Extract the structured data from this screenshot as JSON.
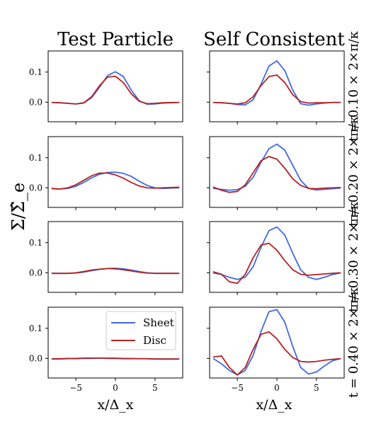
{
  "figure": {
    "col_titles": [
      "Test Particle",
      "Self Consistent"
    ],
    "ylabel": "Σ/Σ̂_e",
    "xlabel": "x/Δ_x",
    "row_labels": [
      "t = 0.10 × 2×π/κ",
      "t = 0.20 × 2×π/κ",
      "t = 0.30 × 2×π/κ",
      "t = 0.40 × 2×π/κ"
    ],
    "legend": [
      "Sheet",
      "Disc"
    ],
    "colors": {
      "sheet": "#4169e1",
      "disc": "#b22222"
    }
  },
  "chart_data": {
    "type": "line",
    "xlim": [
      -8.5,
      8.5
    ],
    "ylim": [
      -0.065,
      0.17
    ],
    "xticks": [
      -5,
      0,
      5
    ],
    "yticks": [
      0.0,
      0.1
    ],
    "xtick_labels": [
      "−5",
      "0",
      "5"
    ],
    "ytick_labels": [
      "0.0",
      "0.1"
    ],
    "x": [
      -8,
      -7,
      -6,
      -5,
      -4,
      -3,
      -2,
      -1,
      0,
      1,
      2,
      3,
      4,
      5,
      6,
      7,
      8
    ],
    "panels": [
      {
        "row": 1,
        "col": "Test Particle",
        "series": [
          {
            "name": "Sheet",
            "values": [
              -0.001,
              -0.002,
              -0.004,
              -0.006,
              -0.003,
              0.015,
              0.05,
              0.088,
              0.101,
              0.085,
              0.04,
              0.005,
              -0.007,
              -0.006,
              -0.003,
              -0.002,
              -0.001
            ]
          },
          {
            "name": "Disc",
            "values": [
              -0.001,
              -0.002,
              -0.004,
              -0.006,
              -0.002,
              0.018,
              0.055,
              0.083,
              0.086,
              0.065,
              0.028,
              0.003,
              -0.005,
              -0.004,
              -0.002,
              -0.001,
              -0.001
            ]
          }
        ]
      },
      {
        "row": 1,
        "col": "Self Consistent",
        "series": [
          {
            "name": "Sheet",
            "values": [
              -0.001,
              -0.002,
              -0.004,
              -0.008,
              -0.009,
              0.008,
              0.06,
              0.12,
              0.137,
              0.105,
              0.04,
              -0.005,
              -0.01,
              -0.006,
              -0.003,
              -0.001,
              -0.001
            ]
          },
          {
            "name": "Disc",
            "values": [
              -0.001,
              -0.002,
              -0.004,
              -0.006,
              -0.002,
              0.018,
              0.055,
              0.085,
              0.09,
              0.065,
              0.025,
              0.002,
              -0.003,
              -0.002,
              -0.002,
              -0.001,
              -0.001
            ]
          }
        ]
      },
      {
        "row": 2,
        "col": "Test Particle",
        "series": [
          {
            "name": "Sheet",
            "values": [
              -0.003,
              -0.004,
              -0.002,
              0.005,
              0.018,
              0.033,
              0.045,
              0.051,
              0.052,
              0.048,
              0.038,
              0.022,
              0.008,
              0.0,
              -0.002,
              -0.001,
              0.0
            ]
          },
          {
            "name": "Disc",
            "values": [
              -0.002,
              -0.004,
              0.0,
              0.01,
              0.025,
              0.04,
              0.049,
              0.049,
              0.043,
              0.032,
              0.018,
              0.006,
              0.0,
              -0.001,
              0.0,
              0.001,
              0.002
            ]
          }
        ]
      },
      {
        "row": 2,
        "col": "Self Consistent",
        "series": [
          {
            "name": "Sheet",
            "values": [
              -0.002,
              -0.005,
              -0.008,
              -0.006,
              0.005,
              0.035,
              0.085,
              0.13,
              0.145,
              0.125,
              0.075,
              0.025,
              -0.002,
              -0.007,
              -0.005,
              -0.003,
              -0.001
            ]
          },
          {
            "name": "Disc",
            "values": [
              0.002,
              -0.008,
              -0.015,
              -0.012,
              0.01,
              0.05,
              0.09,
              0.104,
              0.095,
              0.065,
              0.03,
              0.008,
              -0.002,
              -0.003,
              -0.001,
              0.0,
              0.001
            ]
          }
        ]
      },
      {
        "row": 3,
        "col": "Test Particle",
        "series": [
          {
            "name": "Sheet",
            "values": [
              -0.002,
              -0.002,
              -0.002,
              -0.001,
              0.002,
              0.007,
              0.011,
              0.014,
              0.015,
              0.013,
              0.009,
              0.004,
              0.0,
              -0.002,
              -0.002,
              -0.002,
              -0.002
            ]
          },
          {
            "name": "Disc",
            "values": [
              -0.002,
              -0.002,
              -0.002,
              0.0,
              0.004,
              0.009,
              0.012,
              0.014,
              0.013,
              0.01,
              0.006,
              0.002,
              -0.001,
              -0.002,
              -0.002,
              -0.002,
              -0.002
            ]
          }
        ]
      },
      {
        "row": 3,
        "col": "Self Consistent",
        "series": [
          {
            "name": "Sheet",
            "values": [
              -0.001,
              -0.006,
              -0.015,
              -0.022,
              -0.015,
              0.02,
              0.085,
              0.14,
              0.152,
              0.125,
              0.065,
              0.01,
              -0.015,
              -0.022,
              -0.015,
              -0.006,
              -0.001
            ]
          },
          {
            "name": "Disc",
            "values": [
              0.003,
              -0.005,
              -0.03,
              -0.035,
              -0.005,
              0.05,
              0.092,
              0.098,
              0.075,
              0.04,
              0.01,
              -0.005,
              -0.008,
              -0.006,
              -0.004,
              -0.002,
              0.0
            ]
          }
        ]
      },
      {
        "row": 4,
        "col": "Test Particle",
        "series": [
          {
            "name": "Sheet",
            "values": [
              -0.002,
              -0.002,
              -0.001,
              -0.001,
              0.0,
              0.0,
              0.001,
              0.001,
              0.001,
              0.0,
              0.0,
              -0.001,
              -0.001,
              -0.002,
              -0.002,
              -0.002,
              -0.002
            ]
          },
          {
            "name": "Disc",
            "values": [
              -0.001,
              -0.001,
              0.0,
              0.0,
              0.001,
              0.001,
              0.001,
              0.0,
              0.0,
              -0.001,
              -0.001,
              -0.001,
              -0.001,
              -0.002,
              -0.002,
              -0.002,
              -0.002
            ]
          }
        ]
      },
      {
        "row": 4,
        "col": "Self Consistent",
        "series": [
          {
            "name": "Sheet",
            "values": [
              -0.001,
              -0.018,
              -0.04,
              -0.055,
              -0.04,
              0.01,
              0.09,
              0.155,
              0.162,
              0.12,
              0.04,
              -0.03,
              -0.052,
              -0.045,
              -0.025,
              -0.008,
              -0.001
            ]
          },
          {
            "name": "Disc",
            "values": [
              0.005,
              0.008,
              -0.03,
              -0.055,
              -0.03,
              0.03,
              0.08,
              0.088,
              0.065,
              0.03,
              0.003,
              -0.01,
              -0.012,
              -0.01,
              -0.006,
              -0.003,
              -0.001
            ]
          }
        ]
      }
    ],
    "legend_placement": "upper right of bottom-left panel",
    "grid": false
  }
}
